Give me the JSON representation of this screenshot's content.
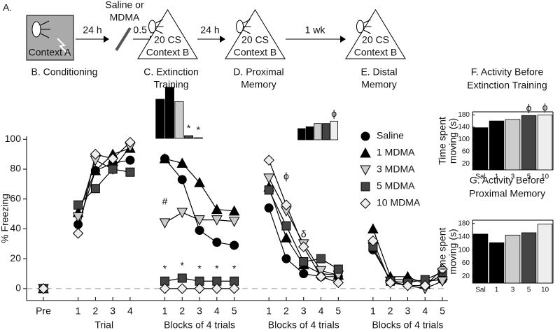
{
  "schematic": {
    "panel_label": "A.",
    "context_a": "Context A",
    "time_1": "24 h",
    "injection": [
      "Saline or",
      "MDMA"
    ],
    "time_2": "0.5 h",
    "time_3": "24 h",
    "time_4": "1 wk",
    "sessions": [
      {
        "cs": "20 CS",
        "context": "Context B"
      },
      {
        "cs": "20 CS",
        "context": "Context B"
      },
      {
        "cs": "20 CS",
        "context": "Context B"
      }
    ],
    "captions": [
      [
        "B. Conditioning"
      ],
      [
        "C. Extinction",
        "Training"
      ],
      [
        "D. Proximal",
        "Memory"
      ],
      [
        "E. Distal",
        "Memory"
      ]
    ]
  },
  "chart_data": [
    {
      "type": "line",
      "ylabel": "% Freezing",
      "categories": [
        "Pre",
        null,
        "1",
        "2",
        "3",
        "4",
        null,
        "1",
        "2",
        "3",
        "4",
        "5",
        null,
        "1",
        "2",
        "3",
        "4",
        "5",
        null,
        "1",
        "2",
        "3",
        "4",
        "5"
      ],
      "group_labels": [
        "Trial",
        "Blocks of 4 trials",
        "Blocks of 4 trials",
        "Blocks of 4 trials"
      ],
      "ylim": [
        -8,
        102
      ],
      "yticks": [
        0,
        20,
        40,
        60,
        80,
        100
      ],
      "zero_line": true,
      "series": [
        {
          "name": "Saline",
          "marker": "circle",
          "color": "#000000",
          "values": [
            0,
            null,
            43,
            79,
            84,
            86,
            null,
            87,
            73,
            39,
            31,
            29,
            null,
            54,
            20,
            10,
            8,
            8,
            null,
            26,
            6,
            6,
            5,
            6
          ]
        },
        {
          "name": "1 MDMA",
          "marker": "triangle-up",
          "color": "#000000",
          "values": [
            0,
            null,
            51,
            79,
            90,
            94,
            null,
            87,
            84,
            71,
            53,
            52,
            null,
            68,
            34,
            16,
            10,
            9,
            null,
            40,
            8,
            8,
            3,
            9
          ]
        },
        {
          "name": "3 MDMA",
          "marker": "triangle-down",
          "color": "#cccccc",
          "values": [
            0,
            null,
            48,
            86,
            80,
            95,
            null,
            44,
            51,
            46,
            46,
            45,
            null,
            74,
            52,
            30,
            12,
            9,
            null,
            28,
            5,
            2,
            0,
            5
          ]
        },
        {
          "name": "5 MDMA",
          "marker": "square",
          "color": "#444444",
          "values": [
            0,
            null,
            56,
            67,
            80,
            78,
            null,
            5,
            7,
            5,
            5,
            5,
            null,
            66,
            42,
            18,
            20,
            13,
            null,
            28,
            5,
            4,
            6,
            11
          ]
        },
        {
          "name": "10 MDMA",
          "marker": "diamond",
          "color": "#eeeeee",
          "values": [
            0,
            null,
            37,
            90,
            87,
            98,
            null,
            0,
            0,
            0,
            0,
            0,
            null,
            86,
            56,
            28,
            8,
            4,
            null,
            32,
            4,
            2,
            2,
            13
          ]
        }
      ],
      "annotations": [
        {
          "text": "*",
          "category": 7,
          "y": 13
        },
        {
          "text": "*",
          "category": 8,
          "y": 15
        },
        {
          "text": "*",
          "category": 9,
          "y": 13
        },
        {
          "text": "*",
          "category": 10,
          "y": 13
        },
        {
          "text": "*",
          "category": 11,
          "y": 13
        },
        {
          "text": "#",
          "category": 7,
          "y": 58
        },
        {
          "text": "ϕ",
          "category": 14,
          "y": 75
        },
        {
          "text": "δ",
          "category": 15,
          "y": 36
        }
      ]
    },
    {
      "type": "bar",
      "title": [
        "F. Activity Before",
        "Extinction Training"
      ],
      "ylabel": [
        "Time spent",
        "moving (s)"
      ],
      "categories": [
        "Sal",
        "1",
        "3",
        "5",
        "10"
      ],
      "values": [
        138,
        160,
        165,
        178,
        180
      ],
      "colors": [
        "#000000",
        "#000000",
        "#cccccc",
        "#444444",
        "#eeeeee"
      ],
      "ylim": [
        0,
        190
      ],
      "yticks": [
        20,
        60,
        100,
        140,
        180
      ],
      "annotations": [
        {
          "text": "ϕ",
          "category": 3
        },
        {
          "text": "ϕ",
          "category": 4
        }
      ]
    },
    {
      "type": "bar",
      "title": [
        "G. Activity Before",
        "Proximal Memory"
      ],
      "ylabel": [
        "Time spent",
        "moving (s)"
      ],
      "categories": [
        "Sal",
        "1",
        "3",
        "5",
        "10"
      ],
      "values": [
        148,
        122,
        145,
        152,
        178
      ],
      "colors": [
        "#000000",
        "#000000",
        "#cccccc",
        "#444444",
        "#eeeeee"
      ],
      "ylim": [
        0,
        190
      ],
      "yticks": [
        20,
        60,
        100,
        140,
        180
      ]
    },
    {
      "type": "bar",
      "values": [
        115,
        150,
        108,
        8,
        2
      ],
      "colors": [
        "#000000",
        "#000000",
        "#cccccc",
        "#444444",
        "#eeeeee"
      ],
      "ylim": [
        0,
        160
      ],
      "annotations": [
        {
          "text": "*",
          "category": 3
        },
        {
          "text": "*",
          "category": 4
        }
      ]
    },
    {
      "type": "bar",
      "values": [
        24,
        28,
        35,
        35,
        40
      ],
      "colors": [
        "#000000",
        "#000000",
        "#cccccc",
        "#444444",
        "#eeeeee"
      ],
      "ylim": [
        0,
        60
      ],
      "annotations": [
        {
          "text": "ϕ",
          "category": 4
        }
      ]
    }
  ]
}
